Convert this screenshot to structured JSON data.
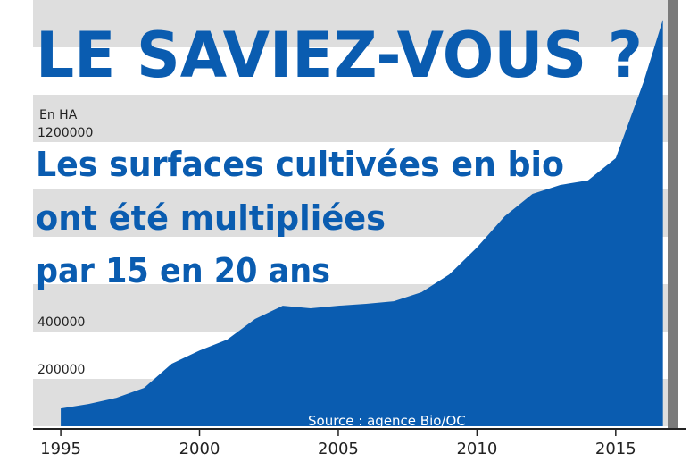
{
  "chart_data": {
    "type": "area",
    "title": "LE SAVIEZ-VOUS ?",
    "subtitle_lines": [
      "Les surfaces cultivées en bio",
      "ont été multipliées",
      "par 15 en 20 ans"
    ],
    "y_label": "En HA",
    "annotation": "Source : agence Bio/OC",
    "x": [
      1995,
      1996,
      1997,
      1998,
      1999,
      2000,
      2001,
      2002,
      2003,
      2004,
      2005,
      2006,
      2007,
      2008,
      2009,
      2010,
      2011,
      2012,
      2013,
      2014,
      2015,
      2016,
      2016.7
    ],
    "values": [
      75000,
      94000,
      120000,
      162000,
      264000,
      320000,
      366000,
      453000,
      509000,
      498000,
      509000,
      517000,
      528000,
      566000,
      641000,
      755000,
      887000,
      981000,
      1019000,
      1038000,
      1132000,
      1453000,
      1717000
    ],
    "color": "#0a5cb0",
    "xlim": [
      1994,
      2017
    ],
    "ylim": [
      0,
      1800000
    ],
    "xticks": [
      1995,
      2000,
      2005,
      2010,
      2015
    ],
    "yticks": [
      200000,
      400000,
      1200000
    ]
  }
}
